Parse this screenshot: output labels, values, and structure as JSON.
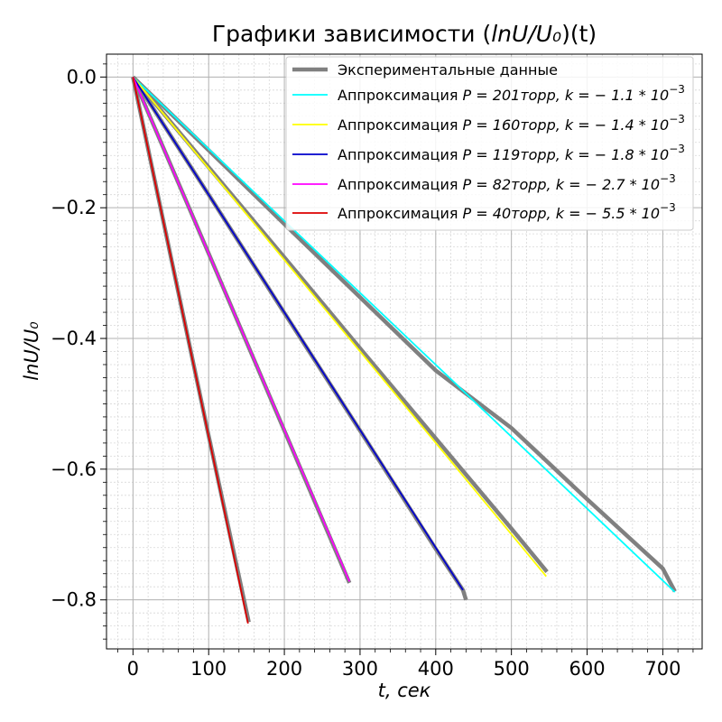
{
  "chart_data": {
    "type": "line",
    "title_prefix": "Графики зависимости (",
    "title_math": "lnU/U₀",
    "title_suffix": ")(t)",
    "xlabel_math": "t, сек",
    "ylabel_math": "lnU/U₀",
    "xlim": [
      -35,
      752
    ],
    "ylim": [
      -0.875,
      0.035
    ],
    "xticks": [
      0,
      100,
      200,
      300,
      400,
      500,
      600,
      700
    ],
    "xtick_labels": [
      "0",
      "100",
      "200",
      "300",
      "400",
      "500",
      "600",
      "700"
    ],
    "yticks": [
      0.0,
      -0.2,
      -0.4,
      -0.6,
      -0.8
    ],
    "ytick_labels": [
      "0.0",
      "−0.2",
      "−0.4",
      "−0.6",
      "−0.8"
    ],
    "grid": true,
    "minor_grid": true,
    "legend_position": "top-right",
    "experimental": {
      "name": "Экспериментальные данные",
      "color": "#808080",
      "series": [
        {
          "x": [
            0,
            50,
            100,
            200,
            300,
            400,
            500,
            600,
            700,
            716
          ],
          "y": [
            0,
            -0.056,
            -0.112,
            -0.225,
            -0.337,
            -0.449,
            -0.537,
            -0.646,
            -0.752,
            -0.787
          ]
        },
        {
          "x": [
            0,
            100,
            200,
            300,
            400,
            500,
            547
          ],
          "y": [
            0,
            -0.138,
            -0.276,
            -0.415,
            -0.553,
            -0.691,
            -0.757
          ]
        },
        {
          "x": [
            0,
            100,
            200,
            300,
            400,
            436,
            440
          ],
          "y": [
            0,
            -0.18,
            -0.361,
            -0.541,
            -0.722,
            -0.785,
            -0.8
          ]
        },
        {
          "x": [
            0,
            100,
            200,
            286
          ],
          "y": [
            0,
            -0.27,
            -0.541,
            -0.774
          ]
        },
        {
          "x": [
            0,
            50,
            100,
            153
          ],
          "y": [
            0,
            -0.275,
            -0.549,
            -0.834
          ]
        }
      ]
    },
    "fits": [
      {
        "prefix": "Аппроксимация ",
        "math": "P = 201торр, k = − 1.1 * 10",
        "exp": "−3",
        "color": "#00ffff",
        "x": [
          0,
          716
        ],
        "y": [
          0,
          -0.788
        ]
      },
      {
        "prefix": "Аппроксимация ",
        "math": "P = 160торр, k = − 1.4 * 10",
        "exp": "−3",
        "color": "#ffff00",
        "x": [
          0,
          546
        ],
        "y": [
          0,
          -0.764
        ]
      },
      {
        "prefix": "Аппроксимация ",
        "math": "P = 119торр, k = − 1.8 * 10",
        "exp": "−3",
        "color": "#0000cc",
        "x": [
          0,
          436
        ],
        "y": [
          0,
          -0.785
        ]
      },
      {
        "prefix": "Аппроксимация ",
        "math": "P = 82торр, k = − 2.7 * 10",
        "exp": "−3",
        "color": "#ff00ff",
        "x": [
          0,
          286
        ],
        "y": [
          0,
          -0.772
        ]
      },
      {
        "prefix": "Аппроксимация ",
        "math": "P = 40торр, k = − 5.5 * 10",
        "exp": "−3",
        "color": "#dd0000",
        "x": [
          0,
          152
        ],
        "y": [
          0,
          -0.836
        ]
      }
    ]
  }
}
